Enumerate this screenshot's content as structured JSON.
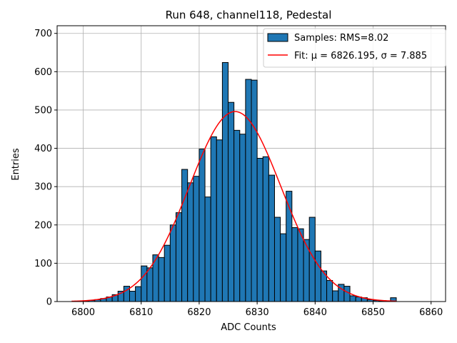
{
  "chart_data": {
    "type": "bar",
    "title": "Run 648, channel118, Pedestal",
    "xlabel": "ADC Counts",
    "ylabel": "Entries",
    "xlim": [
      6795.5,
      6862.5
    ],
    "ylim": [
      0,
      720
    ],
    "xticks": [
      6800,
      6810,
      6820,
      6830,
      6840,
      6850,
      6860
    ],
    "yticks": [
      0,
      100,
      200,
      300,
      400,
      500,
      600,
      700
    ],
    "grid": true,
    "legend_position": "top-right",
    "bin_width": 1,
    "series": [
      {
        "name": "Samples: RMS=8.02",
        "kind": "histogram",
        "color": "#1f77b4",
        "edge_color": "#000000",
        "bins": [
          6799,
          6800,
          6801,
          6802,
          6803,
          6804,
          6805,
          6806,
          6807,
          6808,
          6809,
          6810,
          6811,
          6812,
          6813,
          6814,
          6815,
          6816,
          6817,
          6818,
          6819,
          6820,
          6821,
          6822,
          6823,
          6824,
          6825,
          6826,
          6827,
          6828,
          6829,
          6830,
          6831,
          6832,
          6833,
          6834,
          6835,
          6836,
          6837,
          6838,
          6839,
          6840,
          6841,
          6842,
          6843,
          6844,
          6845,
          6846,
          6847,
          6848,
          6849,
          6850,
          6851,
          6852,
          6853
        ],
        "values": [
          1,
          2,
          3,
          5,
          8,
          12,
          18,
          27,
          40,
          27,
          39,
          93,
          88,
          122,
          115,
          147,
          200,
          232,
          345,
          310,
          327,
          398,
          273,
          430,
          422,
          624,
          520,
          447,
          437,
          580,
          578,
          374,
          378,
          330,
          220,
          177,
          288,
          193,
          190,
          162,
          220,
          132,
          80,
          55,
          28,
          45,
          40,
          15,
          12,
          10,
          5,
          3,
          2,
          1,
          10
        ]
      },
      {
        "name": "Fit: μ = 6826.195, σ = 7.885",
        "kind": "line",
        "color": "#ff0000",
        "mu": 6826.195,
        "sigma": 7.885,
        "amplitude": 496,
        "x_range": [
          6798,
          6854
        ]
      }
    ]
  }
}
